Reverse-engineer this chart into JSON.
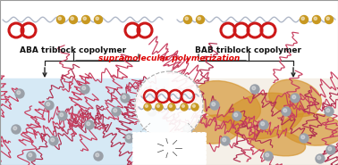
{
  "label_aba": "ABA triblock copolymer",
  "label_bab": "BAB triblock copolymer",
  "label_supra": "supramolecular polymerization",
  "bg_top": "#ffffff",
  "bg_bottom_left": "#d6e9f5",
  "bg_bottom_right": "#f5f0e8",
  "orange_color": "#d4922a",
  "polymer_color1": "#c84060",
  "polymer_color2": "#b03050",
  "node_color": "#9aa0a8",
  "ring_color": "#cc1818",
  "bead_color": "#c89820",
  "supra_color": "#dd0000",
  "label_color": "#111111",
  "arrow_color": "#222222",
  "chain_color": "#b0b8c8",
  "fig_width": 3.78,
  "fig_height": 1.85,
  "dpi": 100
}
